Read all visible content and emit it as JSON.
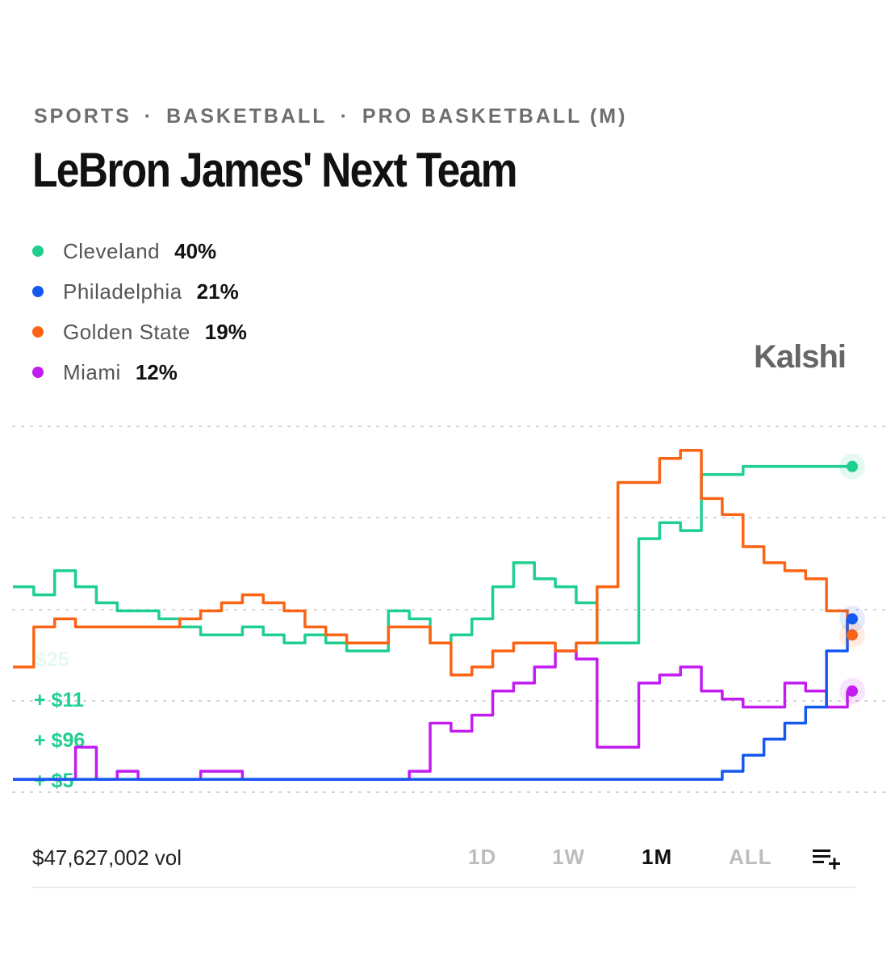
{
  "breadcrumb": [
    "SPORTS",
    "BASKETBALL",
    "PRO BASKETBALL (M)"
  ],
  "title": "LeBron James' Next Team",
  "legend": [
    {
      "name": "Cleveland",
      "pct": "40%",
      "color": "#1fcf8f"
    },
    {
      "name": "Philadelphia",
      "pct": "21%",
      "color": "#1558f0"
    },
    {
      "name": "Golden State",
      "pct": "19%",
      "color": "#fb6414"
    },
    {
      "name": "Miami",
      "pct": "12%",
      "color": "#c21cf0"
    }
  ],
  "logo": "Kalshi",
  "trades": [
    "$25",
    "+ $11",
    "+ $96",
    "+ $5"
  ],
  "volume": "$47,627,002 vol",
  "ranges": [
    "1D",
    "1W",
    "1M",
    "ALL"
  ],
  "active_range": "1M",
  "menu_icon": "list-add-icon",
  "chart_data": {
    "type": "line",
    "x": [
      0,
      1,
      2,
      3,
      4,
      5,
      6,
      7,
      8,
      9,
      10,
      11,
      12,
      13,
      14,
      15,
      16,
      17,
      18,
      19,
      20,
      21,
      22,
      23,
      24,
      25,
      26,
      27,
      28,
      29,
      30,
      31,
      32,
      33,
      34,
      35,
      36,
      37,
      38,
      39,
      40
    ],
    "series": [
      {
        "name": "Cleveland",
        "color": "#1fcf8f",
        "values": [
          25,
          24,
          27,
          25,
          23,
          22,
          22,
          21,
          20,
          19,
          19,
          20,
          19,
          18,
          19,
          18,
          17,
          17,
          22,
          21,
          18,
          19,
          21,
          25,
          28,
          26,
          25,
          23,
          18,
          18,
          31,
          33,
          32,
          39,
          39,
          40,
          40,
          40,
          40,
          40,
          40
        ]
      },
      {
        "name": "Philadelphia",
        "color": "#1558f0",
        "values": [
          1,
          1,
          1,
          1,
          1,
          1,
          1,
          1,
          1,
          1,
          1,
          1,
          1,
          1,
          1,
          1,
          1,
          1,
          1,
          1,
          1,
          1,
          1,
          1,
          1,
          1,
          1,
          1,
          1,
          1,
          1,
          1,
          1,
          1,
          2,
          4,
          6,
          8,
          10,
          17,
          21
        ]
      },
      {
        "name": "Golden State",
        "color": "#fb6414",
        "values": [
          15,
          20,
          21,
          20,
          20,
          20,
          20,
          20,
          21,
          22,
          23,
          24,
          23,
          22,
          20,
          19,
          18,
          18,
          20,
          20,
          18,
          14,
          15,
          17,
          18,
          18,
          17,
          18,
          25,
          38,
          38,
          41,
          42,
          36,
          34,
          30,
          28,
          27,
          26,
          22,
          19
        ]
      },
      {
        "name": "Miami",
        "color": "#c21cf0",
        "values": [
          1,
          1,
          1,
          5,
          1,
          2,
          1,
          1,
          1,
          2,
          2,
          1,
          1,
          1,
          1,
          1,
          1,
          1,
          1,
          2,
          8,
          7,
          9,
          12,
          13,
          15,
          17,
          16,
          5,
          5,
          13,
          14,
          15,
          12,
          11,
          10,
          10,
          13,
          12,
          10,
          12
        ]
      }
    ],
    "ylim": [
      0,
      45
    ],
    "grid": true
  }
}
